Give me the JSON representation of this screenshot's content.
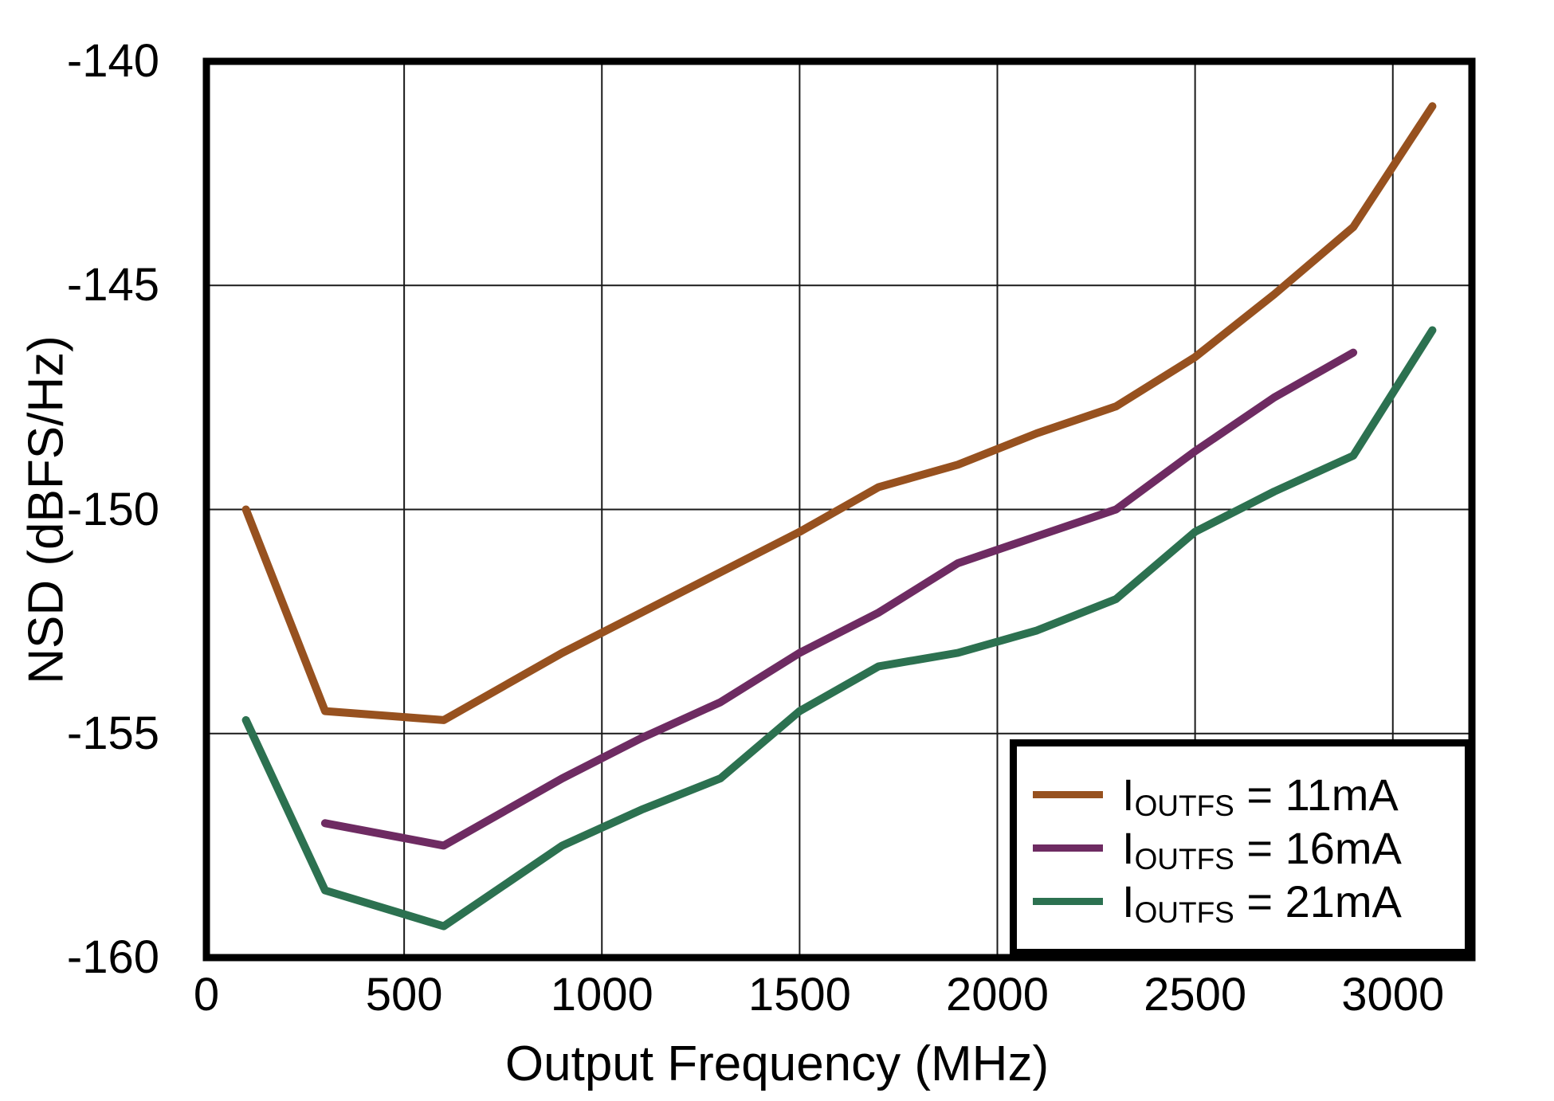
{
  "chart_data": {
    "type": "line",
    "title": "",
    "xlabel": "Output Frequency (MHz)",
    "ylabel": "NSD (dBFS/Hz)",
    "xlim": [
      0,
      3200
    ],
    "ylim": [
      -160,
      -140
    ],
    "grid": true,
    "legend_position": "bottom-right",
    "x_ticks": [
      0,
      500,
      1000,
      1500,
      2000,
      2500,
      3000
    ],
    "x_tick_labels": [
      "0",
      "500",
      "1000",
      "1500",
      "2000",
      "2500",
      "3000"
    ],
    "y_ticks": [
      -140,
      -145,
      -150,
      -155,
      -160
    ],
    "y_tick_labels": [
      "-140",
      "-145",
      "-150",
      "-155",
      "-160"
    ],
    "series": [
      {
        "name": "IOUTFS = 11mA",
        "color": "#97511F",
        "points": [
          [
            100,
            -150.0
          ],
          [
            300,
            -154.5
          ],
          [
            600,
            -154.7
          ],
          [
            900,
            -153.2
          ],
          [
            1100,
            -152.3
          ],
          [
            1300,
            -151.4
          ],
          [
            1500,
            -150.5
          ],
          [
            1700,
            -149.5
          ],
          [
            1900,
            -149.0
          ],
          [
            2100,
            -148.3
          ],
          [
            2300,
            -147.7
          ],
          [
            2500,
            -146.6
          ],
          [
            2700,
            -145.2
          ],
          [
            2900,
            -143.7
          ],
          [
            3100,
            -141.0
          ]
        ]
      },
      {
        "name": "IOUTFS = 16mA",
        "color": "#6E2B62",
        "points": [
          [
            300,
            -157.0
          ],
          [
            600,
            -157.5
          ],
          [
            900,
            -156.0
          ],
          [
            1100,
            -155.1
          ],
          [
            1300,
            -154.3
          ],
          [
            1500,
            -153.2
          ],
          [
            1700,
            -152.3
          ],
          [
            1900,
            -151.2
          ],
          [
            2100,
            -150.6
          ],
          [
            2300,
            -150.0
          ],
          [
            2500,
            -148.7
          ],
          [
            2700,
            -147.5
          ],
          [
            2900,
            -146.5
          ]
        ]
      },
      {
        "name": "IOUTFS = 21mA",
        "color": "#2C7150",
        "points": [
          [
            100,
            -154.7
          ],
          [
            300,
            -158.5
          ],
          [
            600,
            -159.3
          ],
          [
            900,
            -157.5
          ],
          [
            1100,
            -156.7
          ],
          [
            1300,
            -156.0
          ],
          [
            1500,
            -154.5
          ],
          [
            1700,
            -153.5
          ],
          [
            1900,
            -153.2
          ],
          [
            2100,
            -152.7
          ],
          [
            2300,
            -152.0
          ],
          [
            2500,
            -150.5
          ],
          [
            2700,
            -149.6
          ],
          [
            2900,
            -148.8
          ],
          [
            3100,
            -146.0
          ]
        ]
      }
    ]
  },
  "axes": {
    "x_title": "Output Frequency (MHz)",
    "y_title": "NSD (dBFS/Hz)"
  },
  "legend": {
    "items": [
      {
        "prefix": "I",
        "sub": "OUTFS",
        "suffix": " = 11mA"
      },
      {
        "prefix": "I",
        "sub": "OUTFS",
        "suffix": " = 16mA"
      },
      {
        "prefix": "I",
        "sub": "OUTFS",
        "suffix": " = 21mA"
      }
    ]
  },
  "colors": {
    "frame": "#000000",
    "gridline": "#1a1a1a",
    "background": "#ffffff",
    "text": "#000000",
    "series_11mA": "#97511F",
    "series_16mA": "#6E2B62",
    "series_21mA": "#2C7150"
  }
}
